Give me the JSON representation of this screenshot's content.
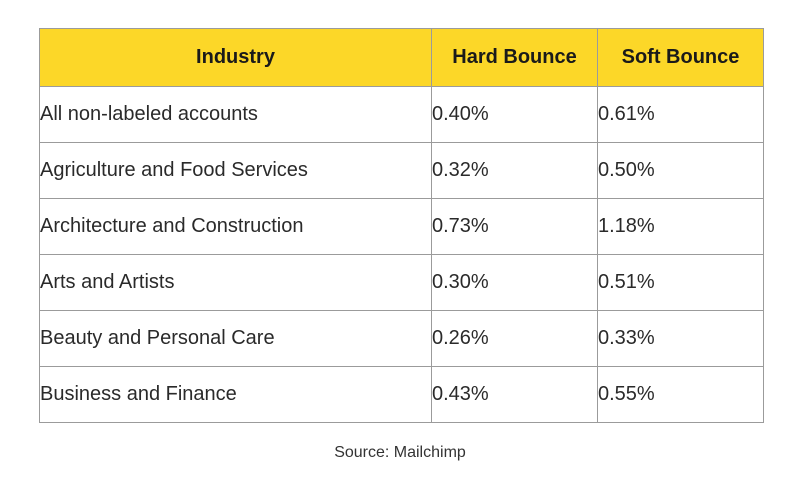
{
  "table": {
    "headers": {
      "industry": "Industry",
      "hard_bounce": "Hard Bounce",
      "soft_bounce": "Soft Bounce"
    },
    "rows": [
      {
        "industry": "All non-labeled accounts",
        "hard_bounce": "0.40%",
        "soft_bounce": "0.61%"
      },
      {
        "industry": "Agriculture and Food Services",
        "hard_bounce": "0.32%",
        "soft_bounce": "0.50%"
      },
      {
        "industry": "Architecture and Construction",
        "hard_bounce": "0.73%",
        "soft_bounce": "1.18%"
      },
      {
        "industry": "Arts and Artists",
        "hard_bounce": "0.30%",
        "soft_bounce": "0.51%"
      },
      {
        "industry": "Beauty and Personal Care",
        "hard_bounce": "0.26%",
        "soft_bounce": "0.33%"
      },
      {
        "industry": "Business and Finance",
        "hard_bounce": "0.43%",
        "soft_bounce": "0.55%"
      }
    ]
  },
  "source": "Source: Mailchimp",
  "colors": {
    "header_background": "#fcd728",
    "border": "#9b9b9b"
  }
}
